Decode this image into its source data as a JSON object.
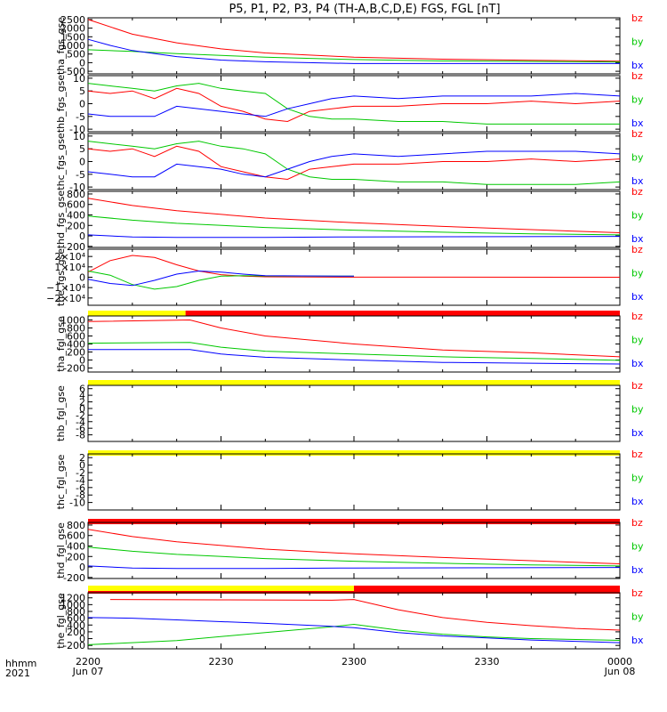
{
  "title": "P5, P1, P2, P3, P4 (TH-A,B,C,D,E) FGS, FGL [nT]",
  "legend": [
    "bz",
    "by",
    "bx"
  ],
  "colors": {
    "bz": "#ff0000",
    "by": "#00c800",
    "bx": "#0000ff",
    "status_yellow": "#ffff00",
    "status_red": "#ff0000"
  },
  "time_axis": {
    "row1": [
      "2200",
      "2230",
      "2300",
      "2330",
      "0000"
    ],
    "row2": [
      "Jun 07",
      "",
      "",
      "",
      "Jun 08"
    ],
    "corner_top": "hhmm",
    "corner_bottom": "2021",
    "range_minutes": [
      0,
      120
    ]
  },
  "chart_data": [
    {
      "type": "line",
      "ylabel": "tha_fgs_gse",
      "ylim": [
        -650,
        2600
      ],
      "yticks": [
        "2500",
        "2000",
        "1500",
        "1000",
        "500",
        "0",
        "-500"
      ],
      "ytick_values": [
        2500,
        2000,
        1500,
        1000,
        500,
        0,
        -500
      ],
      "series": [
        {
          "name": "bz",
          "x": [
            0,
            10,
            20,
            30,
            40,
            60,
            80,
            100,
            120
          ],
          "values": [
            2500,
            1650,
            1150,
            800,
            560,
            320,
            200,
            140,
            90
          ]
        },
        {
          "name": "by",
          "x": [
            0,
            10,
            20,
            40,
            60,
            80,
            120
          ],
          "values": [
            750,
            650,
            520,
            320,
            180,
            100,
            40
          ]
        },
        {
          "name": "bx",
          "x": [
            0,
            5,
            10,
            20,
            30,
            40,
            60,
            120
          ],
          "values": [
            1350,
            1000,
            700,
            350,
            150,
            50,
            -50,
            -50
          ]
        }
      ]
    },
    {
      "type": "line",
      "ylabel": "thb_fgs_gse",
      "ylim": [
        -11,
        11
      ],
      "yticks": [
        "10",
        "5",
        "0",
        "-5",
        "-10"
      ],
      "ytick_values": [
        10,
        5,
        0,
        -5,
        -10
      ],
      "series": [
        {
          "name": "bz",
          "x": [
            0,
            5,
            10,
            15,
            20,
            25,
            30,
            35,
            40,
            45,
            50,
            55,
            60,
            70,
            80,
            90,
            100,
            110,
            120
          ],
          "values": [
            5,
            4,
            5,
            2,
            6,
            4,
            -1,
            -3,
            -6,
            -7,
            -3,
            -2,
            -1,
            -1,
            0,
            0,
            1,
            0,
            1
          ]
        },
        {
          "name": "by",
          "x": [
            0,
            5,
            10,
            15,
            20,
            25,
            30,
            35,
            40,
            45,
            50,
            55,
            60,
            70,
            80,
            90,
            100,
            110,
            120
          ],
          "values": [
            8,
            7,
            6,
            5,
            7,
            8,
            6,
            5,
            4,
            -2,
            -5,
            -6,
            -6,
            -7,
            -7,
            -8,
            -8,
            -8,
            -8
          ]
        },
        {
          "name": "bx",
          "x": [
            0,
            5,
            10,
            15,
            20,
            25,
            30,
            35,
            40,
            45,
            50,
            55,
            60,
            70,
            80,
            90,
            100,
            110,
            120
          ],
          "values": [
            -4,
            -5,
            -5,
            -5,
            -1,
            -2,
            -3,
            -4,
            -5,
            -2,
            0,
            2,
            3,
            2,
            3,
            3,
            3,
            4,
            3
          ]
        }
      ]
    },
    {
      "type": "line",
      "ylabel": "thc_fgs_gse",
      "ylim": [
        -11,
        11
      ],
      "yticks": [
        "10",
        "5",
        "0",
        "-5",
        "-10"
      ],
      "ytick_values": [
        10,
        5,
        0,
        -5,
        -10
      ],
      "series": [
        {
          "name": "bz",
          "x": [
            0,
            5,
            10,
            15,
            20,
            25,
            30,
            35,
            40,
            45,
            50,
            55,
            60,
            70,
            80,
            90,
            100,
            110,
            120
          ],
          "values": [
            5,
            4,
            5,
            2,
            6,
            4,
            -2,
            -4,
            -6,
            -7,
            -3,
            -2,
            -1,
            -1,
            0,
            0,
            1,
            0,
            1
          ]
        },
        {
          "name": "by",
          "x": [
            0,
            5,
            10,
            15,
            20,
            25,
            30,
            35,
            40,
            45,
            50,
            55,
            60,
            70,
            80,
            90,
            100,
            110,
            120
          ],
          "values": [
            8,
            7,
            6,
            5,
            7,
            8,
            6,
            5,
            3,
            -3,
            -6,
            -7,
            -7,
            -8,
            -8,
            -9,
            -9,
            -9,
            -8
          ]
        },
        {
          "name": "bx",
          "x": [
            0,
            5,
            10,
            15,
            20,
            25,
            30,
            35,
            40,
            45,
            50,
            55,
            60,
            70,
            80,
            90,
            100,
            110,
            120
          ],
          "values": [
            -4,
            -5,
            -6,
            -6,
            -1,
            -2,
            -3,
            -5,
            -6,
            -3,
            0,
            2,
            3,
            2,
            3,
            4,
            4,
            4,
            3
          ]
        }
      ]
    },
    {
      "type": "line",
      "ylabel": "thd_fgs_gse",
      "ylim": [
        -220,
        850
      ],
      "yticks": [
        "800",
        "600",
        "400",
        "200",
        "0",
        "-200"
      ],
      "ytick_values": [
        800,
        600,
        400,
        200,
        0,
        -200
      ],
      "series": [
        {
          "name": "bz",
          "x": [
            0,
            10,
            20,
            40,
            60,
            80,
            100,
            120
          ],
          "values": [
            720,
            580,
            480,
            340,
            250,
            180,
            120,
            60
          ]
        },
        {
          "name": "by",
          "x": [
            0,
            10,
            20,
            40,
            60,
            80,
            100,
            120
          ],
          "values": [
            380,
            300,
            240,
            160,
            110,
            70,
            40,
            20
          ]
        },
        {
          "name": "bx",
          "x": [
            0,
            10,
            20,
            40,
            60,
            120
          ],
          "values": [
            20,
            -20,
            -30,
            -30,
            -20,
            -10
          ]
        }
      ]
    },
    {
      "type": "line",
      "ylabel": "the_fgs_gse",
      "ylim": [
        -27000,
        27000
      ],
      "yticks": [
        "2×10⁴",
        "1×10⁴",
        "0",
        "−1×10⁴",
        "−2×10⁴"
      ],
      "ytick_values": [
        20000,
        10000,
        0,
        -10000,
        -20000
      ],
      "series": [
        {
          "name": "bz",
          "x": [
            0,
            5,
            10,
            15,
            20,
            25,
            30,
            35,
            40,
            50,
            60,
            120
          ],
          "values": [
            5000,
            16000,
            21000,
            19000,
            12000,
            6000,
            2500,
            1000,
            400,
            150,
            50,
            0
          ]
        },
        {
          "name": "by",
          "x": [
            0,
            5,
            10,
            15,
            20,
            25,
            30,
            35,
            40,
            60
          ],
          "values": [
            6000,
            2000,
            -7000,
            -11500,
            -9000,
            -3000,
            1000,
            1500,
            1200,
            1000
          ]
        },
        {
          "name": "bx",
          "x": [
            0,
            5,
            10,
            15,
            20,
            25,
            30,
            35,
            40,
            60
          ],
          "values": [
            -2000,
            -6000,
            -8000,
            -3000,
            3000,
            6000,
            5000,
            3000,
            1500,
            1000
          ]
        }
      ],
      "status_bar": [
        {
          "from": 0,
          "to": 22,
          "color": "status_yellow"
        },
        {
          "from": 22,
          "to": 120,
          "color": "status_red"
        }
      ]
    },
    {
      "type": "line",
      "ylabel": "tha_fgl_gse",
      "ylim": [
        -300,
        1100
      ],
      "yticks": [
        "1000",
        "800",
        "600",
        "400",
        "200",
        "0",
        "-200"
      ],
      "ytick_values": [
        1000,
        800,
        600,
        400,
        200,
        0,
        -200
      ],
      "series": [
        {
          "name": "bz",
          "x": [
            0,
            23,
            30,
            40,
            60,
            80,
            100,
            120
          ],
          "values": [
            960,
            1000,
            800,
            600,
            400,
            250,
            180,
            80
          ]
        },
        {
          "name": "by",
          "x": [
            0,
            23,
            30,
            40,
            60,
            80,
            100,
            120
          ],
          "values": [
            420,
            440,
            320,
            220,
            150,
            80,
            40,
            -10
          ]
        },
        {
          "name": "bx",
          "x": [
            0,
            23,
            30,
            40,
            60,
            80,
            100,
            120
          ],
          "values": [
            260,
            260,
            150,
            70,
            0,
            -60,
            -80,
            -100
          ]
        }
      ],
      "status_bar": [
        {
          "from": 0,
          "to": 120,
          "color": "status_yellow"
        }
      ]
    },
    {
      "type": "line",
      "ylabel": "thb_fgl_gse",
      "ylim": [
        -10,
        7
      ],
      "yticks": [
        "6",
        "4",
        "2",
        "0",
        "-2",
        "-4",
        "-6",
        "-8"
      ],
      "ytick_values": [
        6,
        4,
        2,
        0,
        -2,
        -4,
        -6,
        -8
      ],
      "series": [],
      "status_bar": [
        {
          "from": 0,
          "to": 120,
          "color": "status_yellow"
        }
      ]
    },
    {
      "type": "line",
      "ylabel": "thc_fgl_gse",
      "ylim": [
        -12,
        3
      ],
      "yticks": [
        "2",
        "0",
        "-2",
        "-4",
        "-6",
        "-8",
        "-10"
      ],
      "ytick_values": [
        2,
        0,
        -2,
        -4,
        -6,
        -8,
        -10
      ],
      "series": [],
      "status_bar": [
        {
          "from": 0,
          "to": 120,
          "color": "status_red"
        }
      ]
    },
    {
      "type": "line",
      "ylabel": "thd_fgl_gse",
      "ylim": [
        -220,
        850
      ],
      "yticks": [
        "800",
        "600",
        "400",
        "200",
        "0",
        "-200"
      ],
      "ytick_values": [
        800,
        600,
        400,
        200,
        0,
        -200
      ],
      "series": [
        {
          "name": "bz",
          "x": [
            0,
            10,
            20,
            40,
            60,
            80,
            100,
            120
          ],
          "values": [
            720,
            580,
            480,
            340,
            250,
            180,
            120,
            60
          ]
        },
        {
          "name": "by",
          "x": [
            0,
            10,
            20,
            40,
            60,
            80,
            100,
            120
          ],
          "values": [
            380,
            300,
            240,
            160,
            110,
            70,
            40,
            20
          ]
        },
        {
          "name": "bx",
          "x": [
            0,
            10,
            20,
            40,
            60,
            120
          ],
          "values": [
            20,
            -20,
            -30,
            -30,
            -20,
            -10
          ]
        }
      ],
      "status_bar": [
        {
          "from": 0,
          "to": 120,
          "color": "status_red"
        }
      ]
    },
    {
      "type": "line",
      "ylabel": "the_fgl_gse",
      "ylim": [
        -300,
        1350
      ],
      "yticks": [
        "1200",
        "1000",
        "800",
        "600",
        "400",
        "200",
        "0",
        "-200"
      ],
      "ytick_values": [
        1200,
        1000,
        800,
        600,
        400,
        200,
        0,
        -200
      ],
      "series": [
        {
          "name": "bz",
          "x": [
            5,
            30,
            55,
            60,
            70,
            80,
            90,
            100,
            110,
            120
          ],
          "values": [
            1150,
            1140,
            1130,
            1150,
            850,
            620,
            480,
            380,
            300,
            250
          ]
        },
        {
          "name": "by",
          "x": [
            0,
            20,
            40,
            55,
            60,
            70,
            80,
            90,
            100,
            120
          ],
          "values": [
            -180,
            -60,
            180,
            350,
            420,
            250,
            130,
            50,
            0,
            -50
          ]
        },
        {
          "name": "bx",
          "x": [
            0,
            10,
            20,
            40,
            55,
            60,
            70,
            80,
            90,
            100,
            120
          ],
          "values": [
            620,
            600,
            550,
            450,
            360,
            320,
            180,
            80,
            20,
            -40,
            -120
          ]
        }
      ],
      "status_bar": [
        {
          "from": 0,
          "to": 60,
          "color": "status_yellow"
        },
        {
          "from": 60,
          "to": 120,
          "color": "status_red"
        }
      ]
    }
  ]
}
